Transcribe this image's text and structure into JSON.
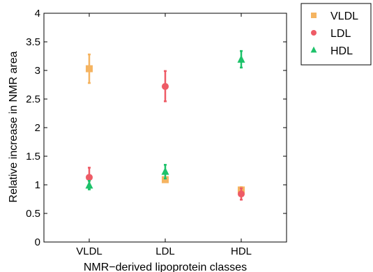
{
  "chart_data": {
    "type": "scatter",
    "xlabel": "NMR−derived lipoprotein classes",
    "ylabel": "Relative increase in NMR area",
    "categories": [
      "VLDL",
      "LDL",
      "HDL"
    ],
    "ylim": [
      0,
      4
    ],
    "yticks": [
      "0",
      "0.5",
      "1",
      "1.5",
      "2",
      "2.5",
      "3",
      "3.5",
      "4"
    ],
    "grid": false,
    "legend_position": "outside-top-right",
    "series": [
      {
        "name": "VLDL",
        "marker": "square",
        "color": "#F5B461",
        "values": [
          3.03,
          1.09,
          0.91
        ],
        "err_low": [
          2.78,
          1.06,
          0.86
        ],
        "err_high": [
          3.28,
          1.13,
          0.96
        ]
      },
      {
        "name": "LDL",
        "marker": "circle",
        "color": "#EE5B66",
        "values": [
          1.13,
          2.72,
          0.84
        ],
        "err_low": [
          0.98,
          2.46,
          0.74
        ],
        "err_high": [
          1.3,
          2.99,
          0.94
        ]
      },
      {
        "name": "HDL",
        "marker": "triangle",
        "color": "#1DC26A",
        "values": [
          0.99,
          1.23,
          3.19
        ],
        "err_low": [
          0.92,
          1.11,
          3.05
        ],
        "err_high": [
          1.07,
          1.35,
          3.34
        ]
      }
    ]
  }
}
